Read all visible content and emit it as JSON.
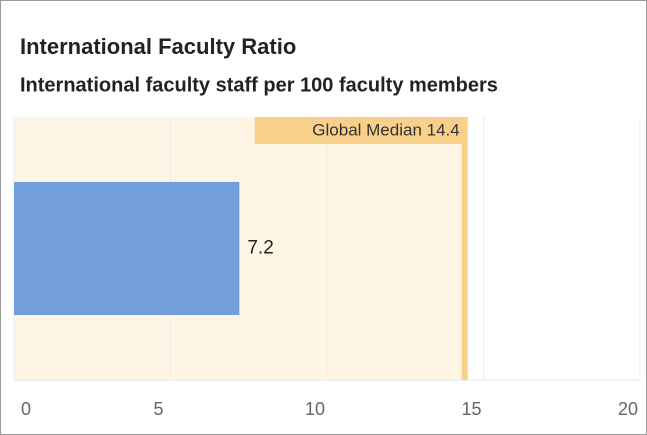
{
  "chart_data": {
    "type": "hbar",
    "title": "International Faculty Ratio",
    "subtitle": "International faculty staff per 100 faculty members",
    "categories": [
      null
    ],
    "values": [
      7.2
    ],
    "color": "#729fdb",
    "xlim": [
      0,
      20
    ],
    "xticks": [
      0,
      5,
      10,
      15,
      20
    ],
    "grid": true,
    "annotation": {
      "label": "Global Median 14.4",
      "value": 14.4,
      "color": "#f8d089",
      "band_color": "#fff5e5"
    }
  }
}
